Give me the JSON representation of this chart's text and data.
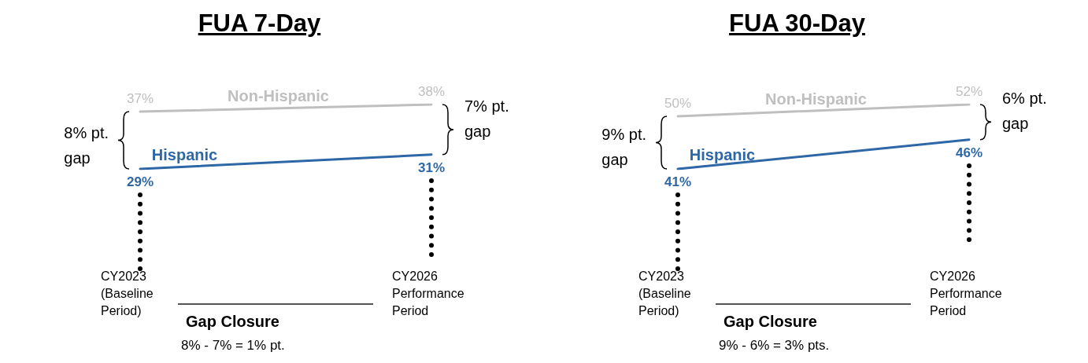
{
  "chart_data": [
    {
      "type": "line",
      "title": "FUA 7-Day",
      "categories": [
        "CY2023\n(Baseline\nPeriod)",
        "CY2026\nPerformance\nPeriod"
      ],
      "series": [
        {
          "name": "Non-Hispanic",
          "color": "#bfbfbf",
          "values": [
            37,
            38
          ],
          "value_labels": [
            "37%",
            "38%"
          ]
        },
        {
          "name": "Hispanic",
          "color": "#2e67a6",
          "values": [
            29,
            31
          ],
          "value_labels": [
            "29%",
            "31%"
          ]
        }
      ],
      "annotations": [
        "8% pt.\ngap",
        "7% pt.\ngap",
        "Gap Closure",
        "8% - 7% = 1% pt."
      ]
    },
    {
      "type": "line",
      "title": "FUA 30-Day",
      "categories": [
        "CY2023\n(Baseline\nPeriod)",
        "CY2026\nPerformance\nPeriod"
      ],
      "series": [
        {
          "name": "Non-Hispanic",
          "color": "#bfbfbf",
          "values": [
            50,
            52
          ],
          "value_labels": [
            "50%",
            "52%"
          ]
        },
        {
          "name": "Hispanic",
          "color": "#2e67a6",
          "values": [
            41,
            46
          ],
          "value_labels": [
            "41%",
            "46%"
          ]
        }
      ],
      "annotations": [
        "9% pt.\ngap",
        "6% pt.\ngap",
        "Gap Closure",
        "9% - 6% = 3% pts."
      ]
    }
  ]
}
